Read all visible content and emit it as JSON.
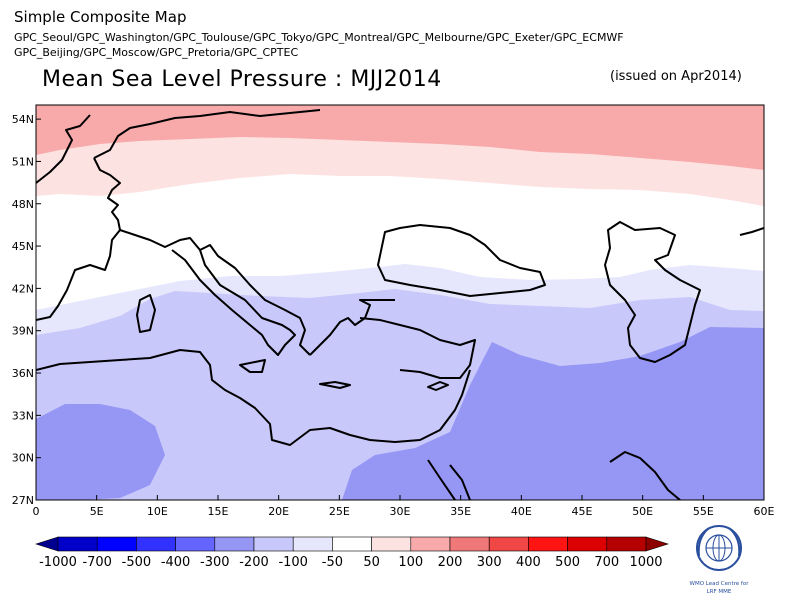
{
  "header": {
    "title": "Simple Composite Map",
    "subtitle_line1": "GPC_Seoul/GPC_Washington/GPC_Toulouse/GPC_Tokyo/GPC_Montreal/GPC_Melbourne/GPC_Exeter/GPC_ECMWF",
    "subtitle_line2": "GPC_Beijing/GPC_Moscow/GPC_Pretoria/GPC_CPTEC"
  },
  "map": {
    "title": "Mean Sea Level Pressure : MJJ2014",
    "issued": "(issued on Apr2014)",
    "lon_ticks": [
      "0",
      "5E",
      "10E",
      "15E",
      "20E",
      "25E",
      "30E",
      "35E",
      "40E",
      "45E",
      "50E",
      "55E",
      "60E"
    ],
    "lat_ticks": [
      "54N",
      "51N",
      "48N",
      "45N",
      "42N",
      "39N",
      "36N",
      "33N",
      "30N",
      "27N"
    ],
    "lon_range": [
      0,
      60
    ],
    "lat_range": [
      27,
      55
    ]
  },
  "colorbar": {
    "labels": [
      "-1000",
      "-700",
      "-500",
      "-400",
      "-300",
      "-200",
      "-100",
      "-50",
      "50",
      "100",
      "200",
      "300",
      "400",
      "500",
      "700",
      "1000"
    ],
    "colors": [
      "#000090",
      "#0000c8",
      "#0000ff",
      "#3232ff",
      "#6464ff",
      "#9696f5",
      "#c8c8fa",
      "#e6e6fc",
      "#ffffff",
      "#fde2e2",
      "#f8aaaa",
      "#f07878",
      "#f04646",
      "#ff1414",
      "#dc0000",
      "#b40000",
      "#8c0000"
    ]
  },
  "logo": {
    "caption_line1": "WMO Lead Centre for",
    "caption_line2": "LRF MME"
  }
}
